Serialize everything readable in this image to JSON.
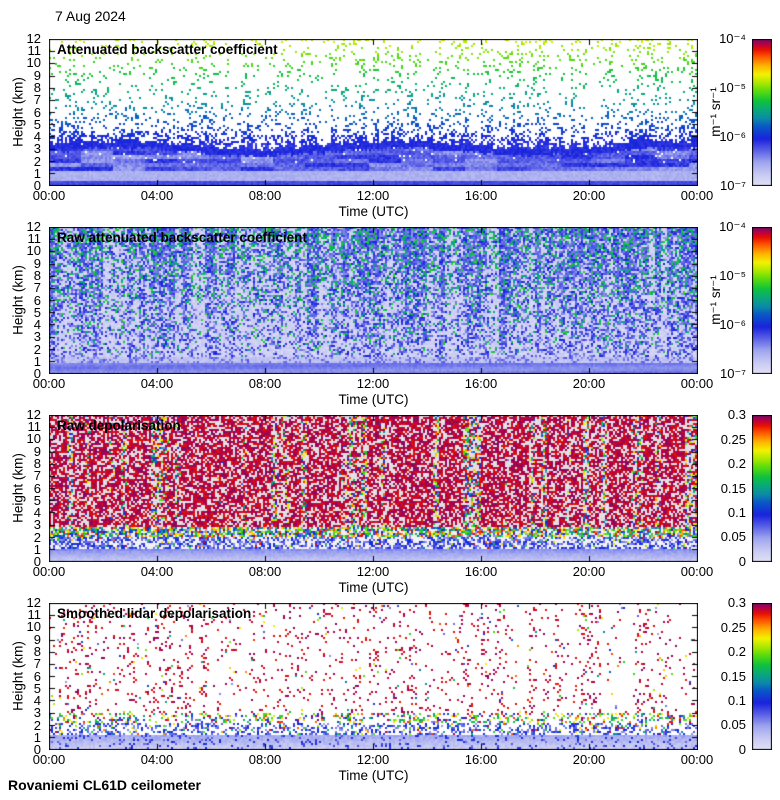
{
  "page": {
    "date_label": "7 Aug 2024",
    "footer": "Rovaniemi CL61D ceilometer",
    "background": "#ffffff"
  },
  "colormap": [
    [
      0.0,
      "#e0e0f6"
    ],
    [
      0.08,
      "#c6c8f2"
    ],
    [
      0.16,
      "#9ea4ee"
    ],
    [
      0.24,
      "#5a60e6"
    ],
    [
      0.32,
      "#1a22dd"
    ],
    [
      0.4,
      "#0a55c8"
    ],
    [
      0.46,
      "#0b8ba8"
    ],
    [
      0.52,
      "#0aa97a"
    ],
    [
      0.58,
      "#10c23c"
    ],
    [
      0.64,
      "#52da12"
    ],
    [
      0.7,
      "#a8e800"
    ],
    [
      0.76,
      "#f2f200"
    ],
    [
      0.82,
      "#ffb400"
    ],
    [
      0.88,
      "#ff5a00"
    ],
    [
      0.93,
      "#e61000"
    ],
    [
      0.97,
      "#b4004a"
    ],
    [
      1.0,
      "#7a0a64"
    ]
  ],
  "chart_data": [
    {
      "type": "heatmap",
      "title": "Attenuated backscatter coefficient",
      "xlabel": "Time (UTC)",
      "ylabel": "Height (km)",
      "x_ticks": [
        "00:00",
        "04:00",
        "08:00",
        "12:00",
        "16:00",
        "20:00",
        "00:00"
      ],
      "y_ticks": [
        "0",
        "1",
        "2",
        "3",
        "4",
        "5",
        "6",
        "7",
        "8",
        "9",
        "10",
        "11",
        "12"
      ],
      "x_range_hours": [
        0,
        24
      ],
      "y_range_km": [
        0,
        12
      ],
      "colorbar": {
        "scale": "log",
        "min": 1e-07,
        "max": 0.0001,
        "unit": "m⁻¹ sr⁻¹",
        "ticks": [
          "10⁻⁴",
          "10⁻⁵",
          "10⁻⁶",
          "10⁻⁷"
        ],
        "tick_pos": [
          1,
          0.6667,
          0.3333,
          0
        ]
      },
      "features": {
        "kind": "backscatter",
        "surface_layer_top_km": 3.4,
        "deep_layer_top_km": 0.55,
        "light_band_top_km": 1.3,
        "edge_band_km": 0.55,
        "dot_density_high": 0.07,
        "dot_density_surface": 0.5,
        "dot_decay_km": 1.0,
        "dot_t_base": 0.33,
        "dot_t_slope": 0.049
      },
      "seed": 11
    },
    {
      "type": "heatmap",
      "title": "Raw attenuated backscatter coefficient",
      "xlabel": "Time (UTC)",
      "ylabel": "Height (km)",
      "x_ticks": [
        "00:00",
        "04:00",
        "08:00",
        "12:00",
        "16:00",
        "20:00",
        "00:00"
      ],
      "y_ticks": [
        "0",
        "1",
        "2",
        "3",
        "4",
        "5",
        "6",
        "7",
        "8",
        "9",
        "10",
        "11",
        "12"
      ],
      "x_range_hours": [
        0,
        24
      ],
      "y_range_km": [
        0,
        12
      ],
      "colorbar": {
        "scale": "log",
        "min": 1e-07,
        "max": 0.0001,
        "unit": "m⁻¹ sr⁻¹",
        "ticks": [
          "10⁻⁴",
          "10⁻⁵",
          "10⁻⁶",
          "10⁻⁷"
        ],
        "tick_pos": [
          1,
          0.6667,
          0.3333,
          0
        ]
      },
      "features": {
        "kind": "raw_backscatter",
        "smooth_top_km": 1.0,
        "light_band_top_km": 1.5,
        "green_rate": 0.021,
        "blue_base": 0.3,
        "blue_rate": 0.022
      },
      "seed": 22
    },
    {
      "type": "heatmap",
      "title": "Raw depolarisation",
      "xlabel": "Time (UTC)",
      "ylabel": "Height (km)",
      "x_ticks": [
        "00:00",
        "04:00",
        "08:00",
        "12:00",
        "16:00",
        "20:00",
        "00:00"
      ],
      "y_ticks": [
        "0",
        "1",
        "2",
        "3",
        "4",
        "5",
        "6",
        "7",
        "8",
        "9",
        "10",
        "11",
        "12"
      ],
      "x_range_hours": [
        0,
        24
      ],
      "y_range_km": [
        0,
        12
      ],
      "colorbar": {
        "scale": "linear",
        "min": 0,
        "max": 0.3,
        "unit": "",
        "ticks": [
          "0.3",
          "0.25",
          "0.2",
          "0.15",
          "0.1",
          "0.05",
          "0"
        ],
        "tick_pos": [
          1,
          0.8333,
          0.6667,
          0.5,
          0.3333,
          0.1667,
          0
        ]
      },
      "features": {
        "kind": "raw_depol",
        "smooth_top_km": 1.1,
        "blue_top_km": 2.1,
        "rainbow_top_km": 3.0,
        "noise_density": 0.54,
        "bg": "#e7e5e9"
      },
      "seed": 33
    },
    {
      "type": "heatmap",
      "title": "Smoothed lidar depolarisation",
      "xlabel": "Time (UTC)",
      "ylabel": "Height (km)",
      "x_ticks": [
        "00:00",
        "04:00",
        "08:00",
        "12:00",
        "16:00",
        "20:00",
        "00:00"
      ],
      "y_ticks": [
        "0",
        "1",
        "2",
        "3",
        "4",
        "5",
        "6",
        "7",
        "8",
        "9",
        "10",
        "11",
        "12"
      ],
      "x_range_hours": [
        0,
        24
      ],
      "y_range_km": [
        0,
        12
      ],
      "colorbar": {
        "scale": "linear",
        "min": 0,
        "max": 0.3,
        "unit": "",
        "ticks": [
          "0.3",
          "0.25",
          "0.2",
          "0.15",
          "0.1",
          "0.05",
          "0"
        ],
        "tick_pos": [
          1,
          0.8333,
          0.6667,
          0.5,
          0.3333,
          0.1667,
          0
        ]
      },
      "features": {
        "kind": "smoothed_depol",
        "smooth_top_km": 1.25,
        "blue_top_km": 2.3,
        "band_top_km": 3.1,
        "dot_density": 0.05
      },
      "seed": 44
    }
  ]
}
